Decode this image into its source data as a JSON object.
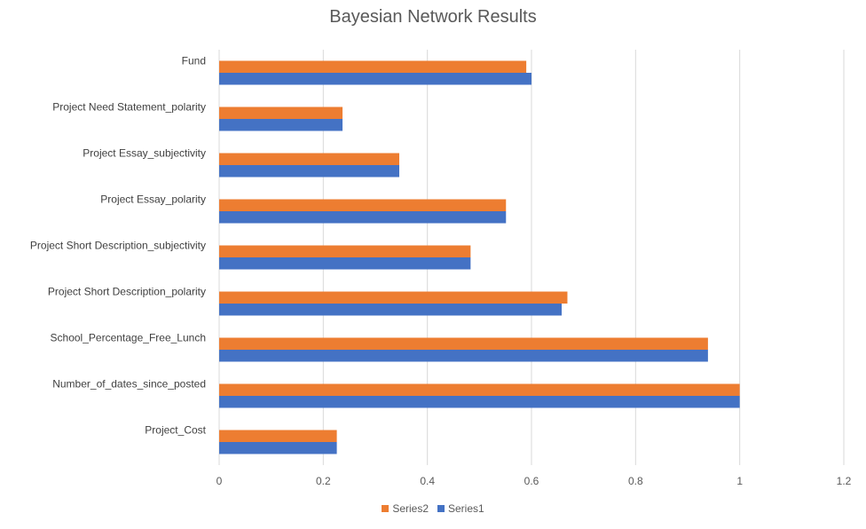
{
  "chart_data": {
    "type": "bar",
    "orientation": "horizontal",
    "title": "Bayesian Network Results",
    "xlabel": "",
    "ylabel": "",
    "xlim": [
      0,
      1.2
    ],
    "x_ticks": [
      "0",
      "0.2",
      "0.4",
      "0.6",
      "0.8",
      "1",
      "1.2"
    ],
    "grid": true,
    "legend_position": "bottom",
    "categories": [
      "Fund",
      "Project Need Statement_polarity",
      "Project Essay_subjectivity",
      "Project Essay_polarity",
      "Project Short Description_subjectivity",
      "Project Short Description_polarity",
      "School_Percentage_Free_Lunch",
      "Number_of_dates_since_posted",
      "Project_Cost"
    ],
    "series": [
      {
        "name": "Series2",
        "color": "#ED7D31",
        "values": [
          0.59,
          0.237,
          0.346,
          0.551,
          0.483,
          0.669,
          0.939,
          1.0,
          0.226
        ]
      },
      {
        "name": "Series1",
        "color": "#4472C4",
        "values": [
          0.6,
          0.237,
          0.346,
          0.551,
          0.483,
          0.658,
          0.939,
          1.0,
          0.226
        ]
      }
    ]
  }
}
